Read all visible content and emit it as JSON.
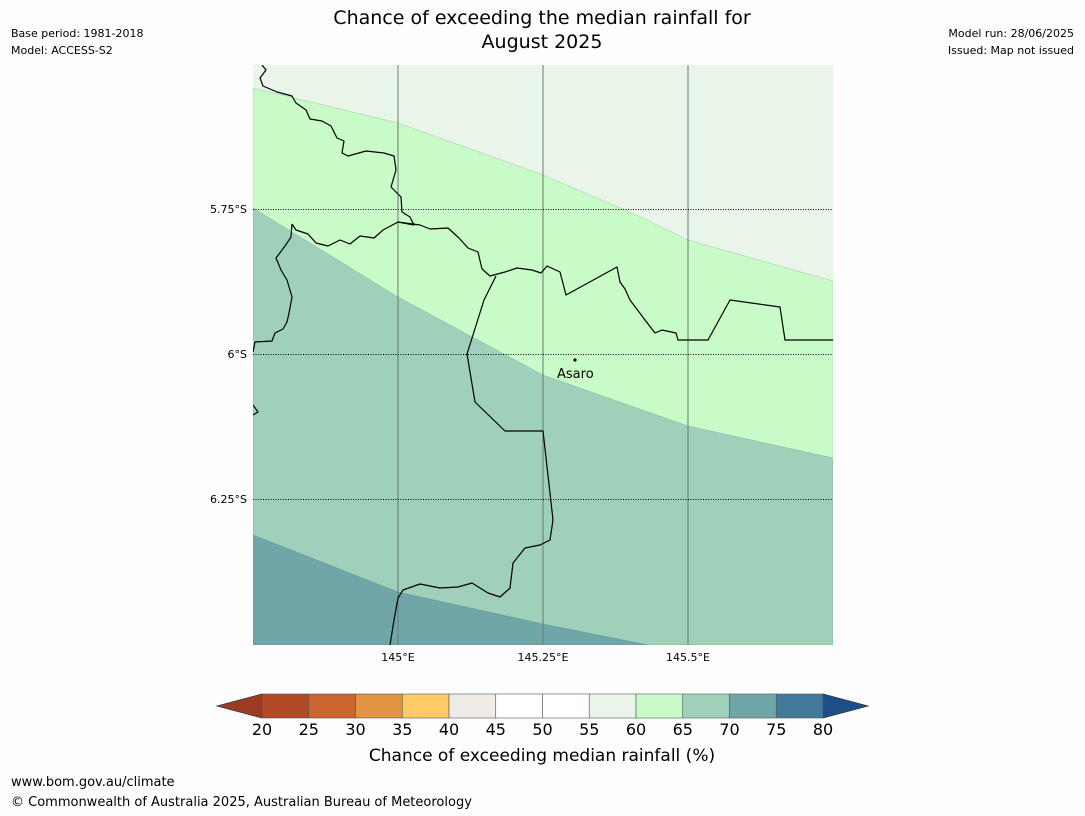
{
  "header": {
    "base_period": "Base period: 1981-2018",
    "model": "Model: ACCESS-S2",
    "model_run": "Model run: 28/06/2025",
    "issued": "Issued: Map not issued",
    "title_line1": "Chance of exceeding the median rainfall for",
    "title_line2": "August 2025"
  },
  "map": {
    "lat_labels": [
      "5.75°S",
      "6°S",
      "6.25°S"
    ],
    "lon_labels": [
      "145°E",
      "145.25°E",
      "145.5°E"
    ],
    "place": "Asaro",
    "band_colors": {
      "55_60": "#eaf5ea",
      "60_65": "#c8fbc8",
      "65_70": "#9ed0ba",
      "70_75": "#70a6a8"
    }
  },
  "colorbar": {
    "ticks": [
      "20",
      "25",
      "30",
      "35",
      "40",
      "45",
      "50",
      "55",
      "60",
      "65",
      "70",
      "75",
      "80"
    ],
    "colors": [
      "#b24a25",
      "#cc6430",
      "#e29443",
      "#fecb65",
      "#efebe6",
      "#ffffff",
      "#ffffff",
      "#eaf5ea",
      "#c8fbc8",
      "#9ed0ba",
      "#70a6a8",
      "#42799a"
    ],
    "under_color": "#9e3b24",
    "over_color": "#1c4f88",
    "label": "Chance of exceeding median rainfall (%)"
  },
  "footer": {
    "url": "www.bom.gov.au/climate",
    "copyright": "© Commonwealth of Australia 2025, Australian Bureau of Meteorology"
  }
}
